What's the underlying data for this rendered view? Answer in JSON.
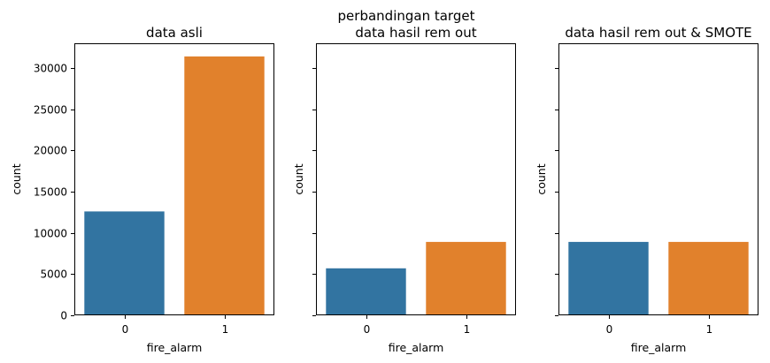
{
  "figure": {
    "suptitle": "perbandingan target"
  },
  "chart_data": [
    {
      "type": "bar",
      "title": "data asli",
      "xlabel": "fire_alarm",
      "ylabel": "count",
      "categories": [
        "0",
        "1"
      ],
      "values": [
        12600,
        31400
      ],
      "colors": [
        "#3274a1",
        "#e1812c"
      ],
      "ylim": [
        0,
        33000
      ],
      "yticks": [
        0,
        5000,
        10000,
        15000,
        20000,
        25000,
        30000
      ],
      "show_ytick_labels": true
    },
    {
      "type": "bar",
      "title": "data hasil rem out",
      "xlabel": "fire_alarm",
      "ylabel": "count",
      "categories": [
        "0",
        "1"
      ],
      "values": [
        5700,
        8900
      ],
      "colors": [
        "#3274a1",
        "#e1812c"
      ],
      "ylim": [
        0,
        33000
      ],
      "yticks": [
        0,
        5000,
        10000,
        15000,
        20000,
        25000,
        30000
      ],
      "show_ytick_labels": false
    },
    {
      "type": "bar",
      "title": "data hasil rem out & SMOTE",
      "xlabel": "fire_alarm",
      "ylabel": "count",
      "categories": [
        "0",
        "1"
      ],
      "values": [
        8900,
        8900
      ],
      "colors": [
        "#3274a1",
        "#e1812c"
      ],
      "ylim": [
        0,
        33000
      ],
      "yticks": [
        0,
        5000,
        10000,
        15000,
        20000,
        25000,
        30000
      ],
      "show_ytick_labels": false
    }
  ]
}
